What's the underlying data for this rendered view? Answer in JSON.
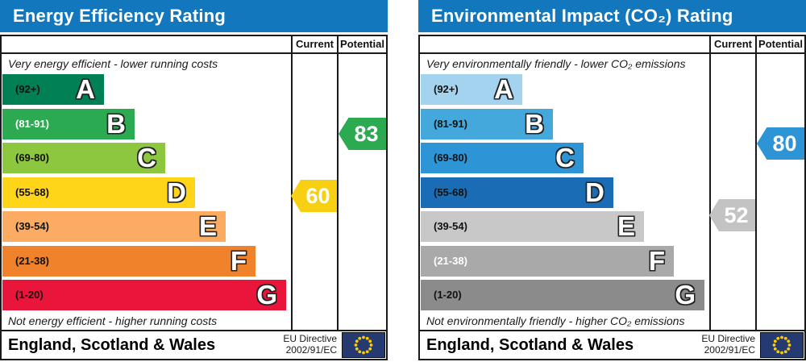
{
  "charts": [
    {
      "title": "Energy Efficiency Rating",
      "header_color": "#1377bd",
      "columns": {
        "current": "Current",
        "potential": "Potential"
      },
      "top_caption": "Very energy efficient - lower running costs",
      "bottom_caption": "Not energy efficient - higher running costs",
      "bands": [
        {
          "letter": "A",
          "range": "(92+)",
          "color": "#008054",
          "label_color": "#111111"
        },
        {
          "letter": "B",
          "range": "(81-91)",
          "color": "#2caa52",
          "label_color": "#ffffff"
        },
        {
          "letter": "C",
          "range": "(69-80)",
          "color": "#8dc63f",
          "label_color": "#111111"
        },
        {
          "letter": "D",
          "range": "(55-68)",
          "color": "#ffd51a",
          "label_color": "#111111"
        },
        {
          "letter": "E",
          "range": "(39-54)",
          "color": "#fbab62",
          "label_color": "#111111"
        },
        {
          "letter": "F",
          "range": "(21-38)",
          "color": "#ef822a",
          "label_color": "#111111"
        },
        {
          "letter": "G",
          "range": "(1-20)",
          "color": "#e9153b",
          "label_color": "#111111"
        }
      ],
      "current": {
        "value": 60,
        "band": "D",
        "color": "#f7cf13"
      },
      "potential": {
        "value": 83,
        "band": "B",
        "color": "#2caa52"
      },
      "footer": {
        "region": "England, Scotland & Wales",
        "directive_line1": "EU Directive",
        "directive_line2": "2002/91/EC"
      }
    },
    {
      "title": "Environmental Impact (CO₂) Rating",
      "header_color": "#1377bd",
      "columns": {
        "current": "Current",
        "potential": "Potential"
      },
      "top_caption": "Very environmentally friendly - lower CO₂ emissions",
      "bottom_caption": "Not environmentally friendly - higher CO₂ emissions",
      "bands": [
        {
          "letter": "A",
          "range": "(92+)",
          "color": "#a3d3ee",
          "label_color": "#111111"
        },
        {
          "letter": "B",
          "range": "(81-91)",
          "color": "#45a8dd",
          "label_color": "#111111"
        },
        {
          "letter": "C",
          "range": "(69-80)",
          "color": "#2d95d5",
          "label_color": "#111111"
        },
        {
          "letter": "D",
          "range": "(55-68)",
          "color": "#1a6db4",
          "label_color": "#111111"
        },
        {
          "letter": "E",
          "range": "(39-54)",
          "color": "#c8c8c8",
          "label_color": "#111111"
        },
        {
          "letter": "F",
          "range": "(21-38)",
          "color": "#a9a9a9",
          "label_color": "#ffffff"
        },
        {
          "letter": "G",
          "range": "(1-20)",
          "color": "#8b8b8b",
          "label_color": "#111111"
        }
      ],
      "current": {
        "value": 52,
        "band": "E",
        "color": "#c3c3c3"
      },
      "potential": {
        "value": 80,
        "band": "C",
        "color": "#2d95d5"
      },
      "footer": {
        "region": "England, Scotland & Wales",
        "directive_line1": "EU Directive",
        "directive_line2": "2002/91/EC"
      }
    }
  ],
  "flag_colors": {
    "background": "#243a70",
    "stars": "#ffcc00"
  },
  "chart_data": [
    {
      "type": "bar",
      "title": "Energy Efficiency Rating",
      "categories": [
        "A (92+)",
        "B (81-91)",
        "C (69-80)",
        "D (55-68)",
        "E (39-54)",
        "F (21-38)",
        "G (1-20)"
      ],
      "series": [
        {
          "name": "Current",
          "values": [
            60
          ],
          "band": "D"
        },
        {
          "name": "Potential",
          "values": [
            83
          ],
          "band": "B"
        }
      ],
      "scale_range": [
        1,
        100
      ],
      "top_note": "Very energy efficient - lower running costs",
      "bottom_note": "Not energy efficient - higher running costs",
      "legend_position": "top-right-columns"
    },
    {
      "type": "bar",
      "title": "Environmental Impact (CO₂) Rating",
      "categories": [
        "A (92+)",
        "B (81-91)",
        "C (69-80)",
        "D (55-68)",
        "E (39-54)",
        "F (21-38)",
        "G (1-20)"
      ],
      "series": [
        {
          "name": "Current",
          "values": [
            52
          ],
          "band": "E"
        },
        {
          "name": "Potential",
          "values": [
            80
          ],
          "band": "C"
        }
      ],
      "scale_range": [
        1,
        100
      ],
      "top_note": "Very environmentally friendly - lower CO₂ emissions",
      "bottom_note": "Not environmentally friendly - higher CO₂ emissions",
      "legend_position": "top-right-columns"
    }
  ]
}
